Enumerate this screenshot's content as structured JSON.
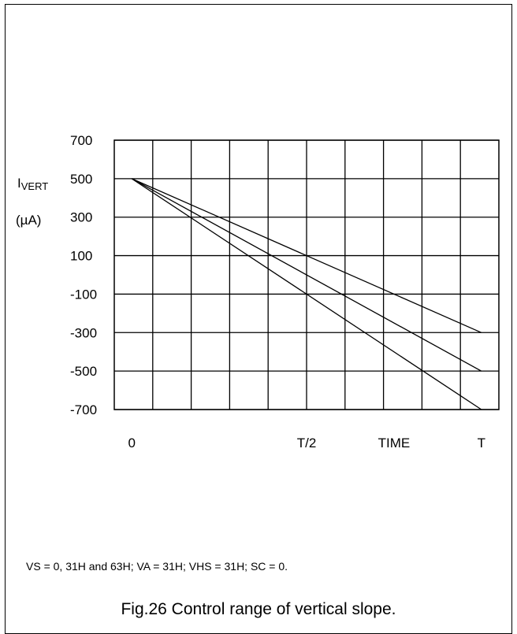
{
  "chart_data": {
    "type": "line",
    "ylabel_main": "I",
    "ylabel_sub": "VERT",
    "ylabel_unit": "(µA)",
    "x_ticks": [
      {
        "label": "0",
        "x": 0
      },
      {
        "label": "T/2",
        "x": 0.5
      },
      {
        "label": "TIME",
        "x": 0.75
      },
      {
        "label": "T",
        "x": 1.0
      }
    ],
    "y_ticks": [
      700,
      500,
      300,
      100,
      -100,
      -300,
      -500,
      -700
    ],
    "xlim": [
      -0.05,
      1.05
    ],
    "ylim": [
      -700,
      700
    ],
    "grid": true,
    "series": [
      {
        "x": [
          0,
          1.0
        ],
        "values": [
          500,
          -300
        ]
      },
      {
        "x": [
          0,
          1.0
        ],
        "values": [
          500,
          -500
        ]
      },
      {
        "x": [
          0,
          1.0
        ],
        "values": [
          500,
          -700
        ]
      }
    ]
  },
  "note": "VS = 0, 31H and 63H; VA = 31H; VHS = 31H; SC = 0.",
  "caption": "Fig.26  Control range of vertical slope."
}
